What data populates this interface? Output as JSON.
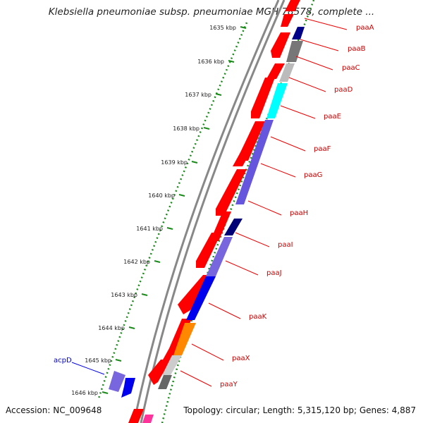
{
  "title": "Klebsiella pneumoniae subsp. pneumoniae MGH 78578, complete ...",
  "footer": {
    "accession": "Accession: NC_009648",
    "topology": "Topology: circular; Length: 5,315,120 bp; Genes: 4,887"
  },
  "colors": {
    "gene_red": "#ff0000",
    "label_red": "#cc0000",
    "label_blue": "#0000cc",
    "tick_green": "#1a8a1a",
    "backbone_gray": "#888888"
  },
  "scale_labels": [
    "1635 kbp",
    "1636 kbp",
    "1637 kbp",
    "1638 kbp",
    "1639 kbp",
    "1640 kbp",
    "1641 kbp",
    "1642 kbp",
    "1643 kbp",
    "1644 kbp",
    "1645 kbp",
    "1646 kbp"
  ],
  "gene_labels": [
    {
      "text": "paaA",
      "strand": "reverse"
    },
    {
      "text": "paaB",
      "strand": "reverse"
    },
    {
      "text": "paaC",
      "strand": "reverse"
    },
    {
      "text": "paaD",
      "strand": "reverse"
    },
    {
      "text": "paaE",
      "strand": "reverse"
    },
    {
      "text": "paaF",
      "strand": "reverse"
    },
    {
      "text": "paaG",
      "strand": "reverse"
    },
    {
      "text": "paaH",
      "strand": "reverse"
    },
    {
      "text": "paaI",
      "strand": "reverse"
    },
    {
      "text": "paaJ",
      "strand": "reverse"
    },
    {
      "text": "paaK",
      "strand": "reverse"
    },
    {
      "text": "paaX",
      "strand": "reverse"
    },
    {
      "text": "paaY",
      "strand": "reverse"
    },
    {
      "text": "acpD",
      "strand": "forward"
    }
  ],
  "cog_colors": [
    "#000088",
    "#777777",
    "#bbbbbb",
    "#00ffff",
    "#6655dd",
    "#7766ee",
    "#000077",
    "#7766dd",
    "#0000ee",
    "#ff8800",
    "#cccccc",
    "#666666",
    "#ff3399"
  ]
}
